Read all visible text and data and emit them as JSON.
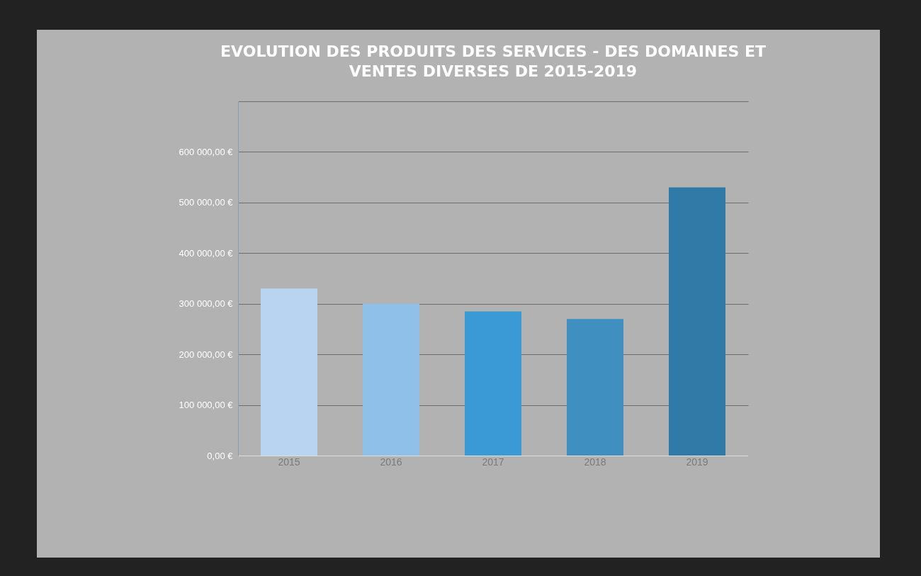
{
  "chart_data": {
    "type": "bar",
    "title": "EVOLUTION DES PRODUITS DES SERVICES - DES DOMAINES ET VENTES DIVERSES DE 2015-2019",
    "categories": [
      "2015",
      "2016",
      "2017",
      "2018",
      "2019"
    ],
    "values": [
      330000,
      300000,
      285000,
      270000,
      530000
    ],
    "colors": [
      "#b8d4f0",
      "#8ec0ea",
      "#3a9ad6",
      "#3f8fc0",
      "#2f7aa6"
    ],
    "ylim": [
      0,
      700000
    ],
    "yticks": [
      {
        "value": 0,
        "label": "0,00 €"
      },
      {
        "value": 100000,
        "label": "100 000,00 €"
      },
      {
        "value": 200000,
        "label": "200 000,00 €"
      },
      {
        "value": 300000,
        "label": "300 000,00 €"
      },
      {
        "value": 400000,
        "label": "400 000,00 €"
      },
      {
        "value": 500000,
        "label": "500 000,00 €"
      },
      {
        "value": 600000,
        "label": "600 000,00 €"
      },
      {
        "value": 700000,
        "label": null
      }
    ],
    "grid": "y"
  }
}
